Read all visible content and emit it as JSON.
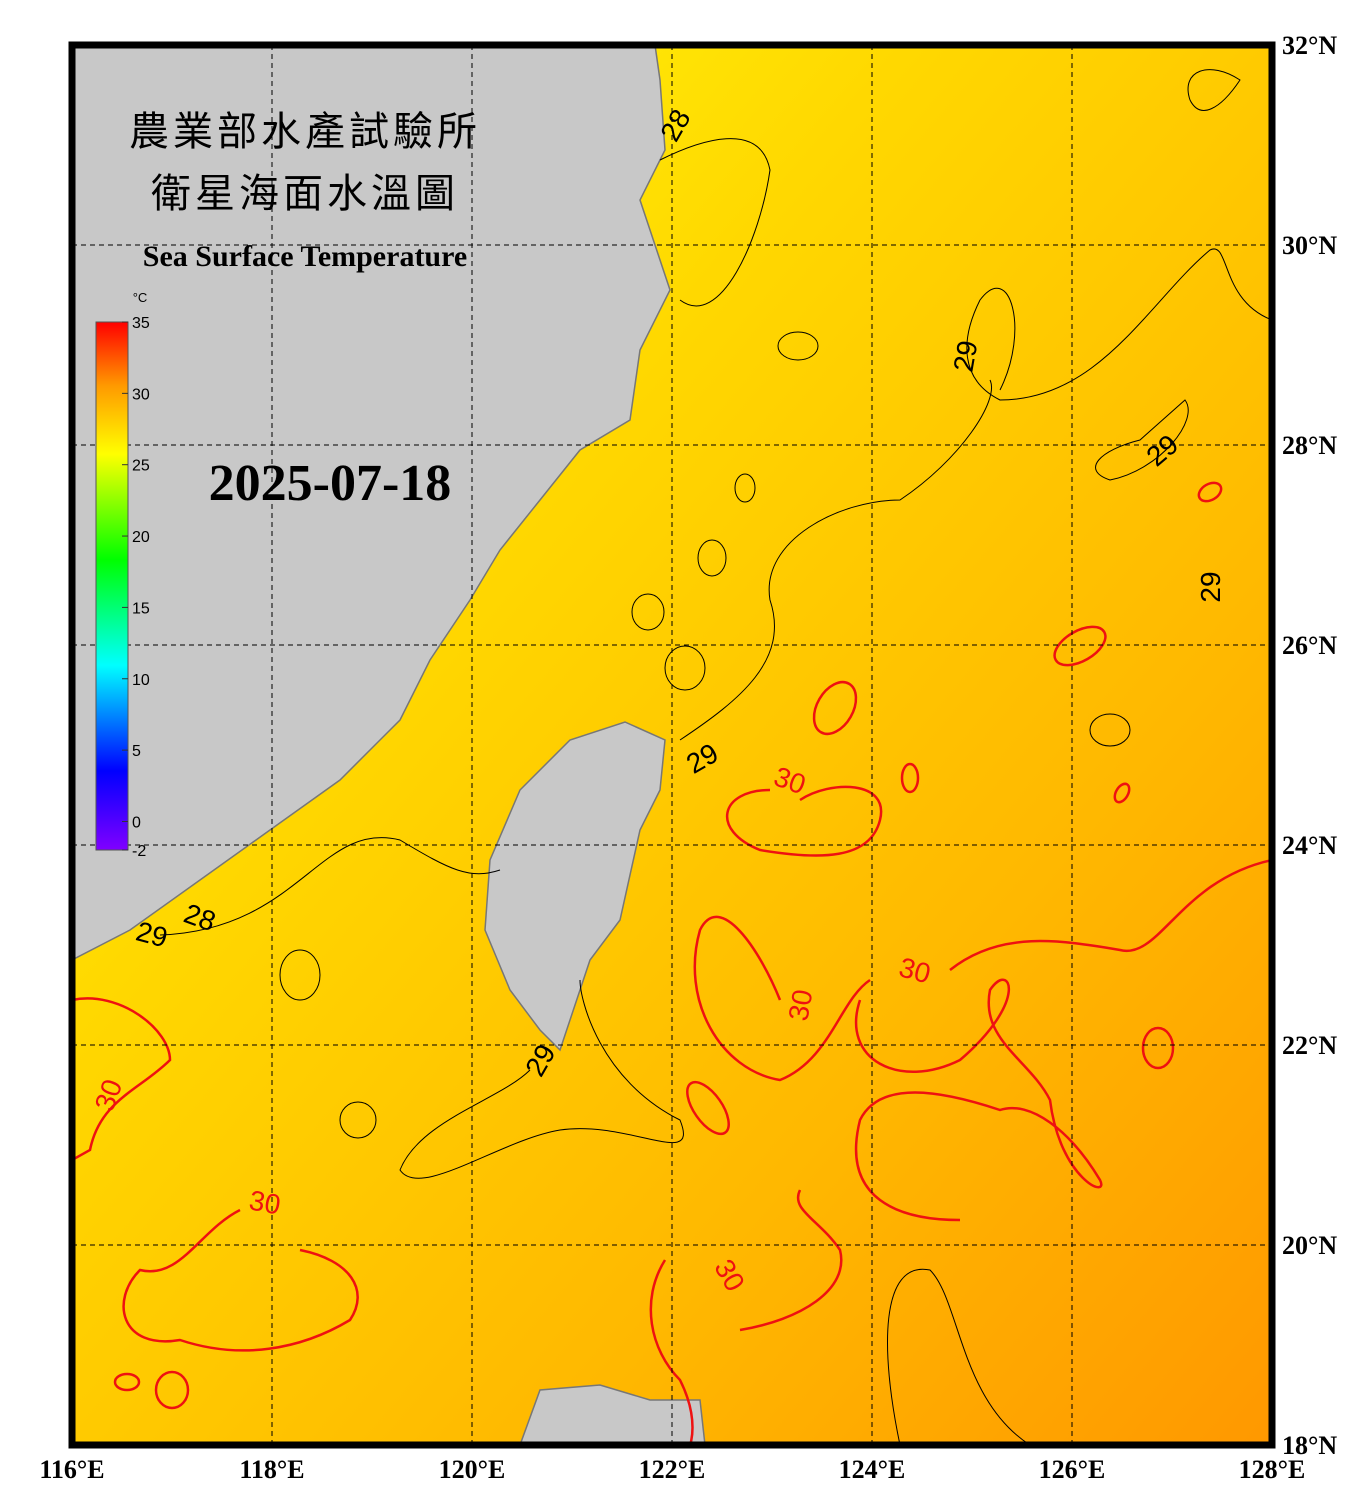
{
  "header": {
    "title_zh": "農業部水產試驗所",
    "subtitle_zh": "衛星海面水溫圖",
    "title_en": "Sea Surface Temperature",
    "date": "2025-07-18"
  },
  "colorbar": {
    "unit": "°C",
    "range": [
      -2,
      35
    ],
    "ticks": [
      35,
      30,
      25,
      20,
      15,
      10,
      5,
      0,
      -2
    ]
  },
  "axes": {
    "xlim": [
      116,
      128
    ],
    "ylim": [
      18,
      32
    ],
    "xticks": [
      {
        "value": 116,
        "label": "116°E"
      },
      {
        "value": 118,
        "label": "118°E"
      },
      {
        "value": 120,
        "label": "120°E"
      },
      {
        "value": 122,
        "label": "122°E"
      },
      {
        "value": 124,
        "label": "124°E"
      },
      {
        "value": 126,
        "label": "126°E"
      },
      {
        "value": 128,
        "label": "128°E"
      }
    ],
    "yticks": [
      {
        "value": 32,
        "label": "32°N"
      },
      {
        "value": 30,
        "label": "30°N"
      },
      {
        "value": 28,
        "label": "28°N"
      },
      {
        "value": 26,
        "label": "26°N"
      },
      {
        "value": 24,
        "label": "24°N"
      },
      {
        "value": 22,
        "label": "22°N"
      },
      {
        "value": 20,
        "label": "20°N"
      },
      {
        "value": 18,
        "label": "18°N"
      }
    ]
  },
  "contour_labels": [
    "28",
    "28",
    "29",
    "29",
    "29",
    "29",
    "29",
    "29",
    "30",
    "30",
    "30",
    "30",
    "30",
    "30"
  ]
}
